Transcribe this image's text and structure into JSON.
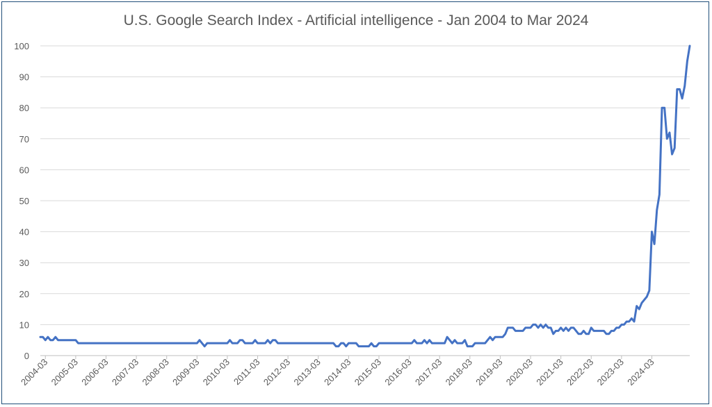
{
  "chart_data": {
    "type": "line",
    "title": "U.S. Google Search Index - Artificial intelligence - Jan 2004 to Mar 2024",
    "xlabel": "",
    "ylabel": "",
    "ylim": [
      0,
      100
    ],
    "y_ticks": [
      0,
      10,
      20,
      30,
      40,
      50,
      60,
      70,
      80,
      90,
      100
    ],
    "x_tick_labels": [
      "2004-03",
      "2005-03",
      "2006-03",
      "2007-03",
      "2008-03",
      "2009-03",
      "2010-03",
      "2011-03",
      "2012-03",
      "2013-03",
      "2014-03",
      "2015-03",
      "2016-03",
      "2017-03",
      "2018-03",
      "2019-03",
      "2020-03",
      "2021-03",
      "2022-03",
      "2023-03",
      "2024-03"
    ],
    "grid": "horizontal",
    "legend": "none",
    "series_color": "#4472c4",
    "x_start": "2004-01",
    "series": [
      {
        "values": [
          6,
          6,
          5,
          6,
          5,
          5,
          6,
          5,
          5,
          5,
          5,
          5,
          5,
          5,
          5,
          4,
          4,
          4,
          4,
          4,
          4,
          4,
          4,
          4,
          4,
          4,
          4,
          4,
          4,
          4,
          4,
          4,
          4,
          4,
          4,
          4,
          4,
          4,
          4,
          4,
          4,
          4,
          4,
          4,
          4,
          4,
          4,
          4,
          4,
          4,
          4,
          4,
          4,
          4,
          4,
          4,
          4,
          4,
          4,
          4,
          4,
          4,
          4,
          5,
          4,
          3,
          4,
          4,
          4,
          4,
          4,
          4,
          4,
          4,
          4,
          5,
          4,
          4,
          4,
          5,
          5,
          4,
          4,
          4,
          4,
          5,
          4,
          4,
          4,
          4,
          5,
          4,
          5,
          5,
          4,
          4,
          4,
          4,
          4,
          4,
          4,
          4,
          4,
          4,
          4,
          4,
          4,
          4,
          4,
          4,
          4,
          4,
          4,
          4,
          4,
          4,
          4,
          3,
          3,
          4,
          4,
          3,
          4,
          4,
          4,
          4,
          3,
          3,
          3,
          3,
          3,
          4,
          3,
          3,
          4,
          4,
          4,
          4,
          4,
          4,
          4,
          4,
          4,
          4,
          4,
          4,
          4,
          4,
          5,
          4,
          4,
          4,
          5,
          4,
          5,
          4,
          4,
          4,
          4,
          4,
          4,
          6,
          5,
          4,
          5,
          4,
          4,
          4,
          5,
          3,
          3,
          3,
          4,
          4,
          4,
          4,
          4,
          5,
          6,
          5,
          6,
          6,
          6,
          6,
          7,
          9,
          9,
          9,
          8,
          8,
          8,
          8,
          9,
          9,
          9,
          10,
          10,
          9,
          10,
          9,
          10,
          9,
          9,
          7,
          8,
          8,
          9,
          8,
          9,
          8,
          9,
          9,
          8,
          7,
          7,
          8,
          7,
          7,
          9,
          8,
          8,
          8,
          8,
          8,
          7,
          7,
          8,
          8,
          9,
          9,
          10,
          10,
          11,
          11,
          12,
          11,
          16,
          15,
          17,
          18,
          19,
          21,
          40,
          36,
          47,
          52,
          80,
          80,
          70,
          72,
          65,
          67,
          86,
          86,
          83,
          87,
          95,
          100
        ]
      }
    ]
  }
}
